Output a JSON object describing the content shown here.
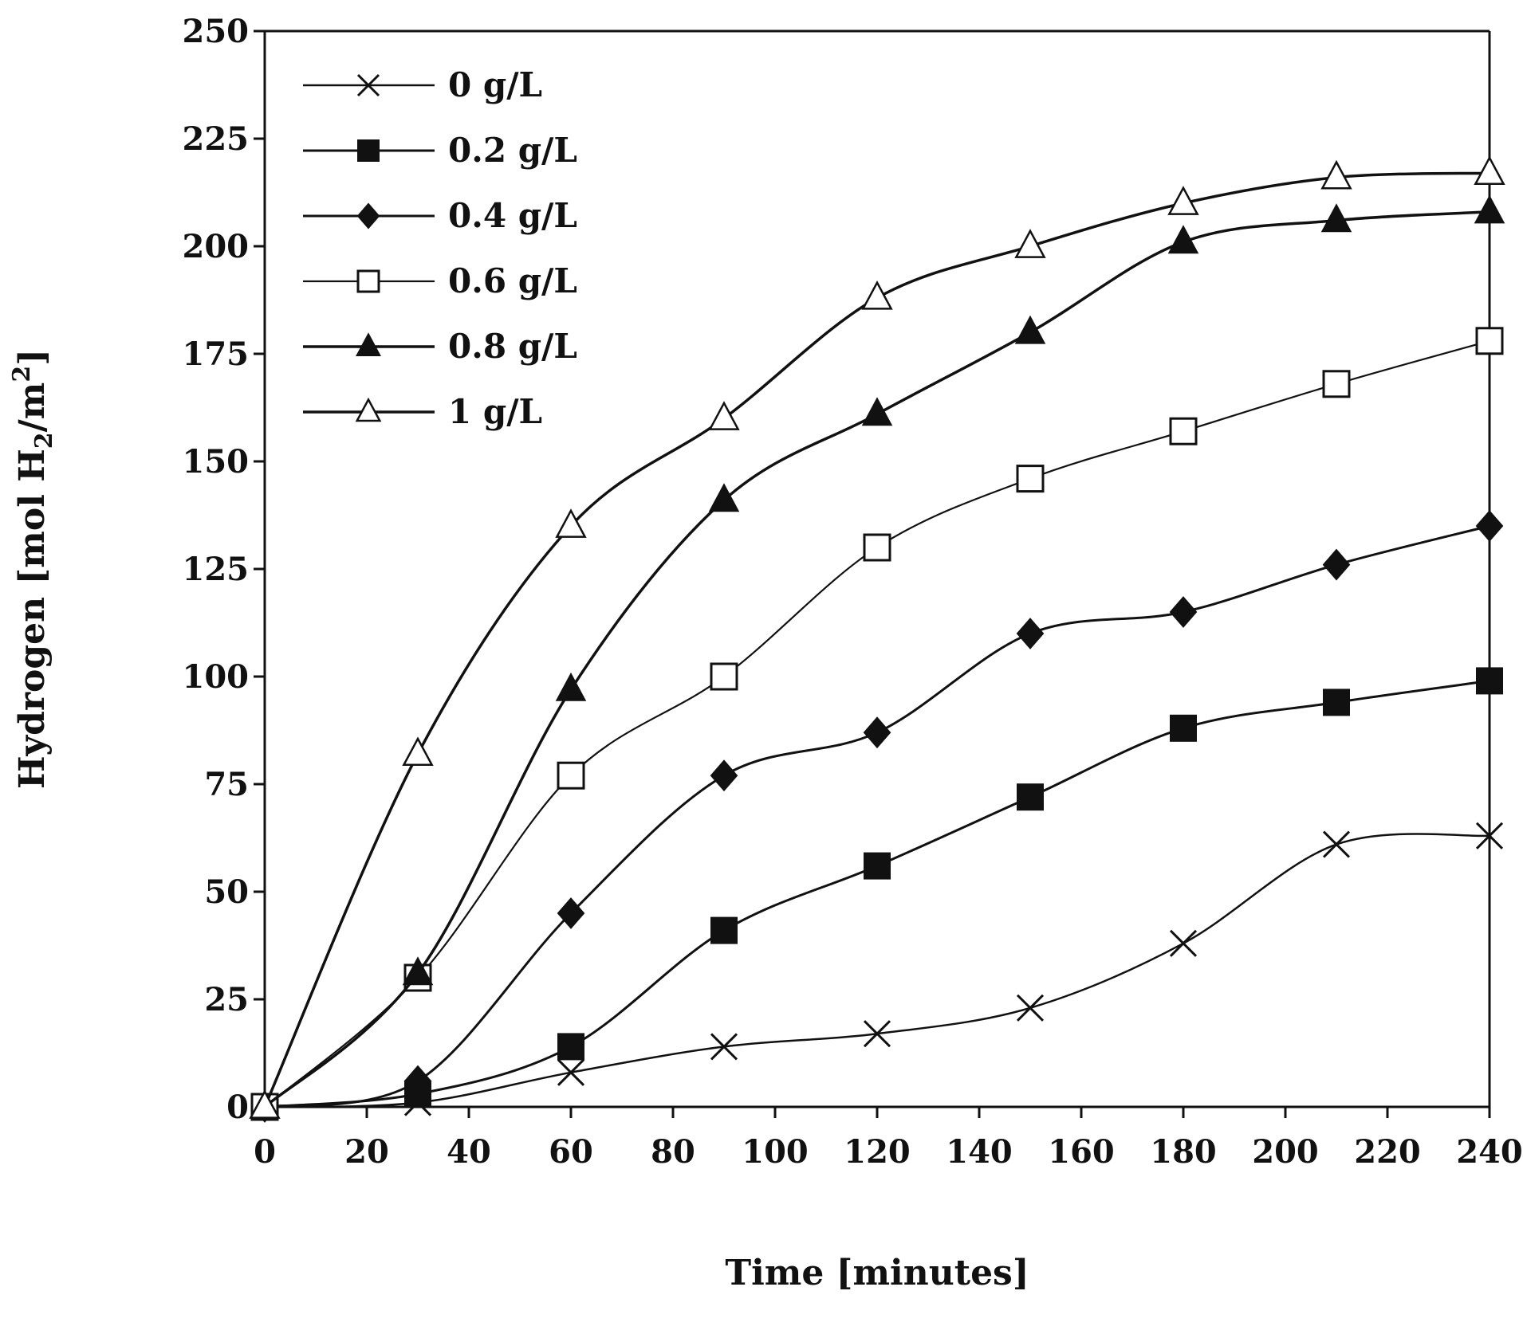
{
  "chart_data": {
    "type": "line",
    "title": "",
    "xlabel": "Time [minutes]",
    "ylabel": {
      "main": "Hydrogen  [mol H",
      "sub": "2",
      "mid": "/m",
      "sup": "2",
      "end": "]"
    },
    "xlim": [
      0,
      240
    ],
    "ylim": [
      0,
      250
    ],
    "xticks": [
      0,
      20,
      40,
      60,
      80,
      100,
      120,
      140,
      160,
      180,
      200,
      220,
      240
    ],
    "yticks": [
      0,
      25,
      50,
      75,
      100,
      125,
      150,
      175,
      200,
      225,
      250
    ],
    "grid": false,
    "legend_position": "top-left",
    "x": [
      0,
      30,
      60,
      90,
      120,
      150,
      180,
      210,
      240
    ],
    "series": [
      {
        "name": "0 g/L",
        "marker": "x",
        "values": [
          0,
          1,
          8,
          14,
          17,
          23,
          38,
          61,
          63
        ]
      },
      {
        "name": "0.2 g/L",
        "marker": "filled-square",
        "values": [
          0,
          3,
          14,
          41,
          56,
          72,
          88,
          94,
          99
        ]
      },
      {
        "name": "0.4 g/L",
        "marker": "filled-diamond",
        "values": [
          0,
          6,
          45,
          77,
          87,
          110,
          115,
          126,
          135
        ]
      },
      {
        "name": "0.6 g/L",
        "marker": "open-square",
        "values": [
          0,
          30,
          77,
          100,
          130,
          146,
          157,
          168,
          178
        ]
      },
      {
        "name": "0.8 g/L",
        "marker": "filled-triangle",
        "values": [
          0,
          31,
          97,
          141,
          161,
          180,
          201,
          206,
          208
        ]
      },
      {
        "name": "1 g/L",
        "marker": "open-triangle",
        "values": [
          0,
          82,
          135,
          160,
          188,
          200,
          210,
          216,
          217
        ]
      }
    ]
  }
}
